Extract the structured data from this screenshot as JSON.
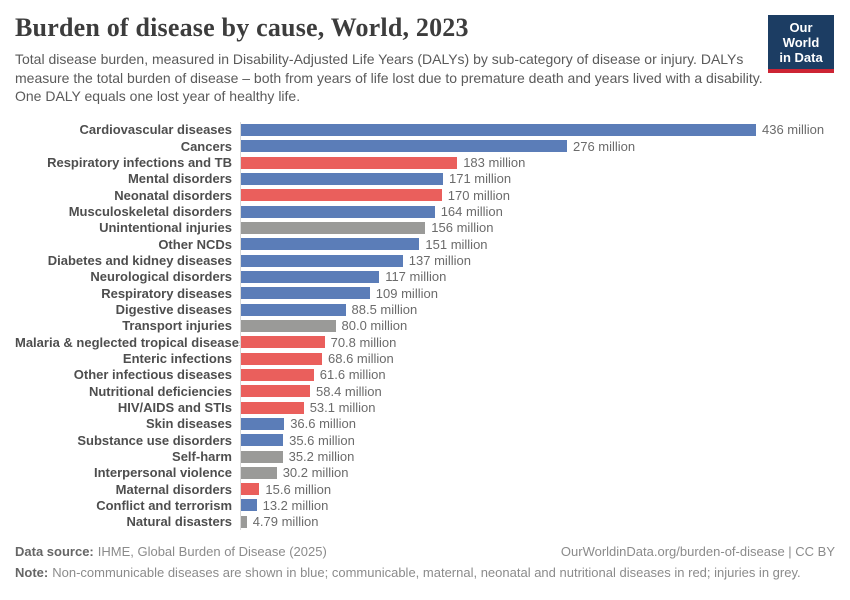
{
  "header": {
    "title": "Burden of disease by cause, World, 2023",
    "subtitle": "Total disease burden, measured in Disability-Adjusted Life Years (DALYs) by sub-category of disease or injury. DALYs measure the total burden of disease – both from years of life lost due to premature death and years lived with a disability. One DALY equals one lost year of healthy life.",
    "logo": {
      "line1": "Our World",
      "line2": "in Data"
    }
  },
  "chart_data": {
    "type": "bar",
    "orientation": "horizontal",
    "unit": "million DALYs",
    "xlim": [
      0,
      436
    ],
    "grid": false,
    "categories": [
      "Cardiovascular diseases",
      "Cancers",
      "Respiratory infections and TB",
      "Mental disorders",
      "Neonatal disorders",
      "Musculoskeletal disorders",
      "Unintentional injuries",
      "Other NCDs",
      "Diabetes and kidney diseases",
      "Neurological disorders",
      "Respiratory diseases",
      "Digestive diseases",
      "Transport injuries",
      "Malaria & neglected tropical diseases",
      "Enteric infections",
      "Other infectious diseases",
      "Nutritional deficiencies",
      "HIV/AIDS and STIs",
      "Skin diseases",
      "Substance use disorders",
      "Self-harm",
      "Interpersonal violence",
      "Maternal disorders",
      "Conflict and terrorism",
      "Natural disasters"
    ],
    "values": [
      436,
      276,
      183,
      171,
      170,
      164,
      156,
      151,
      137,
      117,
      109,
      88.5,
      80.0,
      70.8,
      68.6,
      61.6,
      58.4,
      53.1,
      36.6,
      35.6,
      35.2,
      30.2,
      15.6,
      13.2,
      4.79
    ],
    "value_labels": [
      "436 million",
      "276 million",
      "183 million",
      "171 million",
      "170 million",
      "164 million",
      "156 million",
      "151 million",
      "137 million",
      "117 million",
      "109 million",
      "88.5 million",
      "80.0 million",
      "70.8 million",
      "68.6 million",
      "61.6 million",
      "58.4 million",
      "53.1 million",
      "36.6 million",
      "35.6 million",
      "35.2 million",
      "30.2 million",
      "15.6 million",
      "13.2 million",
      "4.79 million"
    ],
    "color_groups": [
      "blue",
      "blue",
      "red",
      "blue",
      "red",
      "blue",
      "grey",
      "blue",
      "blue",
      "blue",
      "blue",
      "blue",
      "grey",
      "red",
      "red",
      "red",
      "red",
      "red",
      "blue",
      "blue",
      "grey",
      "grey",
      "red",
      "blue",
      "grey"
    ],
    "color_map": {
      "blue": "#5b7db8",
      "red": "#ea5f5c",
      "grey": "#9a9a98"
    },
    "color_meaning": {
      "blue": "Non-communicable diseases",
      "red": "Communicable, maternal, neonatal and nutritional diseases",
      "grey": "Injuries"
    }
  },
  "footer": {
    "data_source_label": "Data source:",
    "data_source_text": "IHME, Global Burden of Disease (2025)",
    "citation": "OurWorldinData.org/burden-of-disease | CC BY",
    "note_label": "Note:",
    "note_text": "Non-communicable diseases are shown in blue; communicable, maternal, neonatal and nutritional diseases in red; injuries in grey."
  }
}
